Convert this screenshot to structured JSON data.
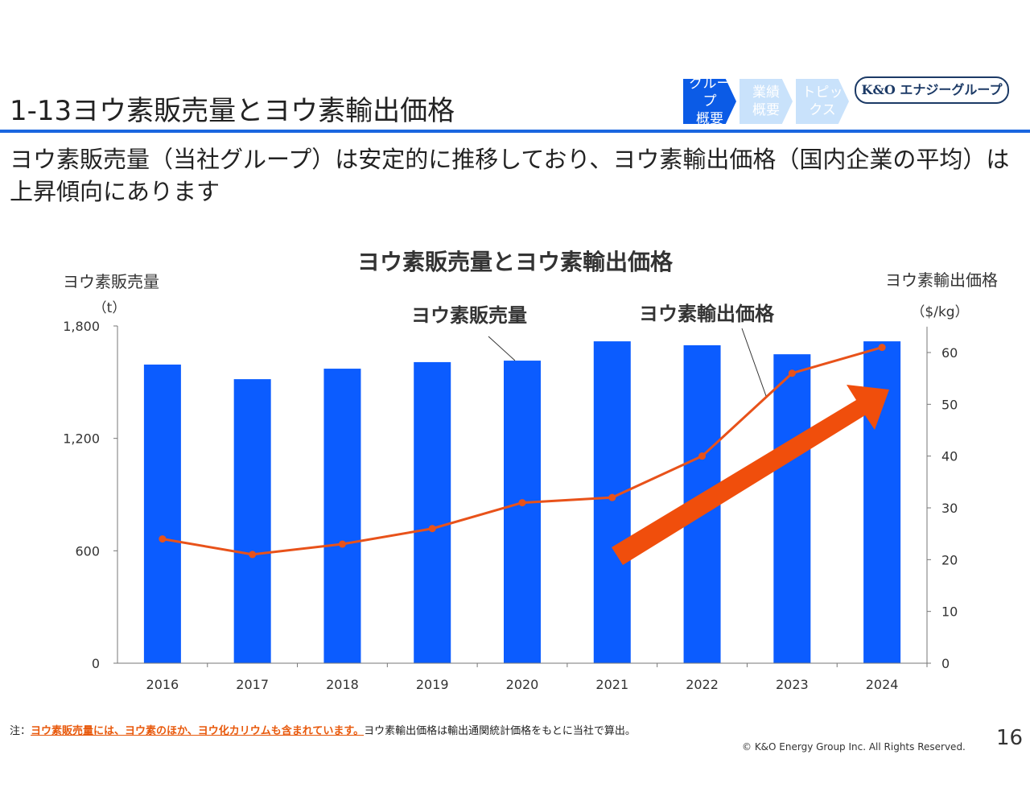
{
  "header": {
    "title": "1-13ヨウ素販売量とヨウ素輸出価格",
    "nav": [
      {
        "label_top": "グループ",
        "label_bottom": "概要",
        "active": true
      },
      {
        "label_top": "業績",
        "label_bottom": "概要",
        "active": false
      },
      {
        "label_top": "トピッ",
        "label_bottom": "クス",
        "active": false
      }
    ],
    "brand_logo": "K&O エナジーグループ",
    "accent_color": "#1a66e0"
  },
  "subtitle": "ヨウ素販売量（当社グループ）は安定的に推移しており、ヨウ素輸出価格（国内企業の平均）は上昇傾向にあります",
  "chart_data": {
    "type": "bar+line",
    "title": "ヨウ素販売量とヨウ素輸出価格",
    "categories": [
      "2016",
      "2017",
      "2018",
      "2019",
      "2020",
      "2021",
      "2022",
      "2023",
      "2024"
    ],
    "series": [
      {
        "name": "ヨウ素販売量",
        "type": "bar",
        "axis": "left",
        "color": "#0b5cff",
        "values": [
          1594,
          1516,
          1572,
          1607,
          1615,
          1718,
          1697,
          1649,
          1718
        ]
      },
      {
        "name": "ヨウ素輸出価格",
        "type": "line",
        "axis": "right",
        "color": "#e8521a",
        "values": [
          24,
          21,
          23,
          26,
          31,
          32,
          40,
          56,
          61
        ]
      }
    ],
    "y_left": {
      "label": "ヨウ素販売量",
      "unit": "（t）",
      "range": [
        0,
        1800
      ],
      "ticks": [
        0,
        600,
        1200,
        1800
      ],
      "tick_labels": [
        "0",
        "600",
        "1,200",
        "1,800"
      ]
    },
    "y_right": {
      "label": "ヨウ素輸出価格",
      "unit": "（$/kg）",
      "range": [
        0,
        65
      ],
      "ticks": [
        0,
        10,
        20,
        30,
        40,
        50,
        60
      ]
    },
    "grid": false,
    "legend": "callout labels",
    "trend_arrow": {
      "color": "#f04e0c",
      "direction": "upward"
    }
  },
  "footer": {
    "note_prefix": "注：",
    "note_highlight": "ヨウ素販売量には、ヨウ素のほか、ヨウ化カリウムも含まれています。",
    "note_rest": "ヨウ素輸出価格は輸出通関統計価格をもとに当社で算出。",
    "copyright": "© K&O Energy Group Inc. All Rights Reserved.",
    "page_number": "16"
  }
}
